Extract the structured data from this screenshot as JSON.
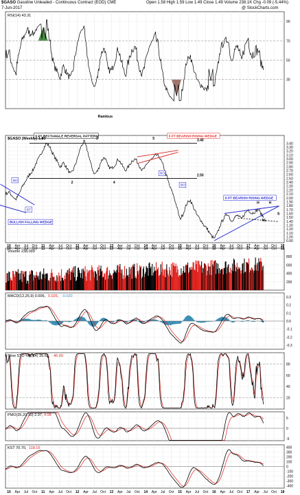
{
  "header": {
    "symbol": "$GASO",
    "description": "Gasoline Unleaded - Continuous Contract (EOD) CME",
    "date": "7-Jun-2017",
    "copyright": "@ StockCharts.com",
    "ohlc": {
      "open_label": "Open",
      "open": "1.58",
      "high_label": "High",
      "high": "1.59",
      "low_label": "Low",
      "low": "1.49",
      "close_label": "Close",
      "close": "1.49",
      "volume_label": "Volume",
      "volume": "238.1K",
      "chg_label": "Chg",
      "chg": "-0.09 (-5.44%)"
    }
  },
  "chart_data": [
    {
      "name": "rsi",
      "type": "line",
      "legend": "RSI(14) 43.31",
      "ylim": [
        0,
        100
      ],
      "yticks": [
        "90",
        "70",
        "50",
        "30"
      ],
      "levels": [
        70,
        50,
        30
      ],
      "colors": {
        "line": "#000000",
        "overbought": "#4e8c4a",
        "oversold": "#a0766c"
      },
      "events": [
        {
          "x": 2011.0,
          "y": 84
        },
        {
          "x": 2014.9,
          "y": 13
        },
        {
          "x": 2015.9,
          "y": 29
        }
      ]
    },
    {
      "name": "price",
      "type": "line",
      "legend": "$GASO (Weekly) 1.49",
      "title": "Rambus",
      "ylim": [
        0.85,
        3.6
      ],
      "yticks": [
        "3.40",
        "3.30",
        "3.20",
        "3.10",
        "3.00",
        "2.90",
        "2.80",
        "2.70",
        "2.60",
        "2.50",
        "2.40",
        "2.30",
        "2.20",
        "2.10",
        "2.00",
        "1.90",
        "1.80",
        "1.70",
        "1.60",
        "1.50",
        "1.40",
        "1.30",
        "1.20",
        "1.10",
        "1.00",
        "0.90"
      ],
      "lines": [
        {
          "x": [
            2010.6,
            2015.5
          ],
          "y": [
            3.4,
            3.4
          ],
          "color": "#000000"
        },
        {
          "x": [
            2010.6,
            2015.5
          ],
          "y": [
            2.5,
            2.5
          ],
          "color": "#000000"
        },
        {
          "x": [
            2013.75,
            2014.95
          ],
          "y": [
            3.05,
            3.22
          ],
          "color": "#e0201c"
        },
        {
          "x": [
            2013.75,
            2014.95
          ],
          "y": [
            2.88,
            3.17
          ],
          "color": "#e0201c"
        },
        {
          "x": [
            2009.75,
            2010.75
          ],
          "y": [
            2.35,
            1.82
          ],
          "color": "#1a1ad0"
        },
        {
          "x": [
            2009.0,
            2010.5
          ],
          "y": [
            2.0,
            1.62
          ],
          "color": "#1a1ad0"
        },
        {
          "x": [
            2016.0,
            2017.9
          ],
          "y": [
            0.9,
            1.79
          ],
          "color": "#1a1ad0"
        },
        {
          "x": [
            2016.3,
            2017.9
          ],
          "y": [
            1.6,
            1.79
          ],
          "color": "#1a1ad0"
        },
        {
          "x": [
            2016.7,
            2017.9
          ],
          "y": [
            1.48,
            1.39
          ],
          "color": "#000000",
          "dash": true
        }
      ],
      "annotations": [
        {
          "text": "5 PT RECTANGLE REVERSAL PATTERN",
          "x": 2010.75,
          "y": 3.56,
          "box": true,
          "color": "#000000"
        },
        {
          "text": "5 PT BEARISH RISING WEDGE",
          "x": 2014.65,
          "y": 3.56,
          "box": true,
          "color": "#e0201c"
        },
        {
          "text": "6 PT BEARISH RISING WEDGE",
          "x": 2016.3,
          "y": 1.97,
          "box": true,
          "color": "#1a1ad0"
        },
        {
          "text": "BULLISH FALLING WEDGE",
          "x": 2010.0,
          "y": 1.35,
          "box": true,
          "color": "#1a1ad0"
        },
        {
          "text": "BO",
          "x": 2010.1,
          "y": 2.42,
          "box": true,
          "color": "#1a1ad0"
        },
        {
          "text": "BT",
          "x": 2010.5,
          "y": 1.67,
          "box": true,
          "color": "#1a1ad0"
        },
        {
          "text": "BO",
          "x": 2014.4,
          "y": 2.6,
          "box": true,
          "color": "#1a1ad0"
        },
        {
          "text": "BO",
          "x": 2015.0,
          "y": 2.3,
          "box": true,
          "color": "#1a1ad0"
        },
        {
          "text": "3.40",
          "x": 2015.5,
          "y": 3.45,
          "box": false,
          "color": "#000000"
        },
        {
          "text": "2.50",
          "x": 2015.5,
          "y": 2.55,
          "box": false,
          "color": "#000000"
        },
        {
          "text": "1",
          "x": 2010.95,
          "y": 3.49,
          "box": false,
          "color": "#000000"
        },
        {
          "text": "2",
          "x": 2011.82,
          "y": 2.37,
          "box": false,
          "color": "#000000"
        },
        {
          "text": "3",
          "x": 2012.55,
          "y": 3.49,
          "box": false,
          "color": "#000000"
        },
        {
          "text": "4",
          "x": 2013.05,
          "y": 2.37,
          "box": false,
          "color": "#000000"
        },
        {
          "text": "5",
          "x": 2014.2,
          "y": 3.49,
          "box": false,
          "color": "#000000"
        },
        {
          "text": "H",
          "x": 2017.25,
          "y": 1.85,
          "box": false,
          "color": "#000000"
        },
        {
          "text": "H",
          "x": 2017.6,
          "y": 1.85,
          "box": false,
          "color": "#000000"
        },
        {
          "text": "S",
          "x": 2017.85,
          "y": 1.56,
          "box": false,
          "color": "#000000"
        },
        {
          "text": "NL",
          "x": 2017.4,
          "y": 1.4,
          "box": false,
          "color": "#000000"
        }
      ]
    },
    {
      "name": "volume",
      "type": "bar",
      "legend": "Volume 238,099",
      "ylim": [
        0,
        1000
      ],
      "yticks": [
        "800",
        "600",
        "400",
        "200"
      ],
      "colors": {
        "up": "#000000",
        "down": "#e0201c"
      }
    },
    {
      "name": "macd",
      "type": "line",
      "legend_macd": "MACD(12,26,9) 0.006,",
      "legend_signal": "0.026,",
      "legend_hist": "-0.020",
      "ylim": [
        -0.35,
        0.35
      ],
      "yticks": [
        "0.3",
        "0.2",
        "0.1",
        "0.0",
        "-0.1",
        "-0.2",
        "-0.3"
      ],
      "colors": {
        "macd": "#000000",
        "signal": "#e0201c",
        "hist": "#3c8fb5"
      }
    },
    {
      "name": "sto",
      "type": "line",
      "legend_k": "Slow STO %K(14) 35.63,",
      "legend_d": "46.00",
      "ylim": [
        0,
        100
      ],
      "yticks": [
        "80",
        "60",
        "40",
        "20"
      ],
      "levels": [
        80,
        20
      ],
      "colors": {
        "k": "#000000",
        "d": "#e0201c"
      }
    },
    {
      "name": "pmo",
      "type": "line",
      "legend_pmo": "PMO(35,20,10) 2.97,",
      "legend_signal": "4.08",
      "ylim": [
        -6,
        8
      ],
      "yticks": [
        "5",
        "0",
        "-5"
      ],
      "colors": {
        "pmo": "#000000",
        "signal": "#e0201c"
      }
    },
    {
      "name": "kst",
      "type": "line",
      "legend_kst": "KST 70.70,",
      "legend_signal": "118.15",
      "ylim": [
        -450,
        450
      ],
      "yticks": [
        "400",
        "300",
        "200",
        "100",
        "0",
        "-100",
        "-200",
        "-300",
        "-400"
      ],
      "colors": {
        "kst": "#000000",
        "signal": "#e0201c"
      }
    }
  ],
  "price_series": {
    "x": [
      2009.0,
      2009.1,
      2009.2,
      2009.3,
      2009.4,
      2009.5,
      2009.6,
      2009.7,
      2009.8,
      2009.9,
      2010.0,
      2010.1,
      2010.2,
      2010.3,
      2010.4,
      2010.5,
      2010.6,
      2010.7,
      2010.8,
      2010.9,
      2011.0,
      2011.1,
      2011.2,
      2011.3,
      2011.4,
      2011.5,
      2011.6,
      2011.7,
      2011.8,
      2011.9,
      2012.0,
      2012.1,
      2012.2,
      2012.3,
      2012.4,
      2012.5,
      2012.6,
      2012.7,
      2012.8,
      2012.9,
      2013.0,
      2013.1,
      2013.2,
      2013.3,
      2013.4,
      2013.5,
      2013.6,
      2013.7,
      2013.8,
      2013.9,
      2014.0,
      2014.1,
      2014.2,
      2014.3,
      2014.4,
      2014.5,
      2014.6,
      2014.7,
      2014.8,
      2014.9,
      2015.0,
      2015.1,
      2015.2,
      2015.3,
      2015.4,
      2015.5,
      2015.6,
      2015.7,
      2015.8,
      2015.9,
      2016.0,
      2016.1,
      2016.2,
      2016.3,
      2016.4,
      2016.5,
      2016.6,
      2016.7,
      2016.8,
      2016.9,
      2017.0,
      2017.1,
      2017.2,
      2017.3,
      2017.4,
      2017.5
    ],
    "y": [
      1.95,
      2.05,
      2.2,
      2.35,
      2.2,
      2.1,
      2.0,
      1.95,
      2.05,
      2.1,
      2.15,
      2.05,
      1.95,
      2.1,
      2.3,
      2.45,
      2.6,
      2.7,
      2.9,
      3.05,
      3.25,
      3.4,
      3.3,
      3.1,
      2.95,
      2.8,
      2.9,
      2.75,
      2.6,
      2.75,
      3.0,
      3.3,
      3.45,
      3.2,
      2.85,
      2.6,
      2.7,
      2.95,
      3.05,
      2.8,
      2.75,
      2.85,
      3.0,
      2.85,
      2.7,
      2.8,
      2.95,
      3.0,
      2.85,
      2.7,
      2.8,
      2.95,
      3.0,
      3.1,
      3.05,
      2.85,
      2.6,
      2.3,
      2.1,
      1.8,
      1.45,
      1.6,
      1.85,
      1.95,
      1.75,
      1.55,
      1.45,
      1.3,
      1.2,
      1.05,
      0.95,
      1.1,
      1.35,
      1.5,
      1.6,
      1.4,
      1.5,
      1.55,
      1.45,
      1.6,
      1.7,
      1.6,
      1.65,
      1.7,
      1.55,
      1.49
    ]
  },
  "x_axis": {
    "labels": [
      "10",
      "Apr",
      "Jul",
      "Oct",
      "11",
      "Apr",
      "Jul",
      "Oct",
      "12",
      "Apr",
      "Jul",
      "Oct",
      "13",
      "Apr",
      "Jul",
      "Oct",
      "14",
      "Apr",
      "Jul",
      "Oct",
      "15",
      "Apr",
      "Jul",
      "Oct",
      "16",
      "Apr",
      "Jul",
      "Oct",
      "17",
      "Apr",
      "Jul",
      "Oct",
      "18"
    ]
  }
}
